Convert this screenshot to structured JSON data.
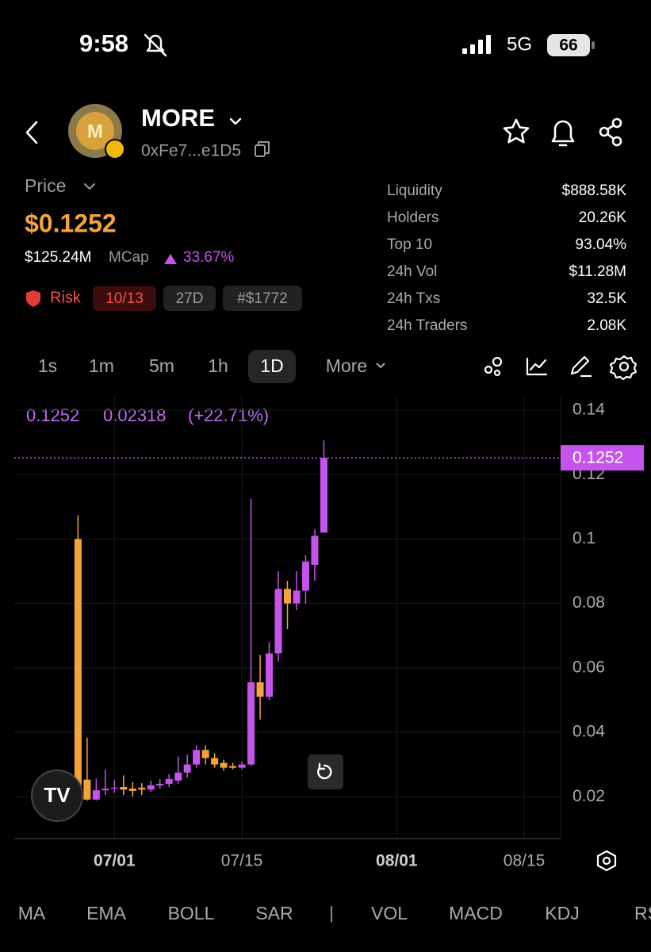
{
  "status_bar": {
    "time": "9:58",
    "network": "5G",
    "battery": "66"
  },
  "header": {
    "name": "MORE",
    "address": "0xFe7...e1D5"
  },
  "price": {
    "label": "Price",
    "value": "$0.1252",
    "mcap": "$125.24M",
    "mcap_label": "MCap",
    "change": "33.67%",
    "risk_label": "Risk",
    "risk_score": "10/13",
    "age": "27D",
    "rank": "#$1772"
  },
  "stats": [
    [
      "Liquidity",
      "$888.58K"
    ],
    [
      "Holders",
      "20.26K"
    ],
    [
      "Top 10",
      "93.04%"
    ],
    [
      "24h Vol",
      "$11.28M"
    ],
    [
      "24h Txs",
      "32.5K"
    ],
    [
      "24h Traders",
      "2.08K"
    ]
  ],
  "timeframes": [
    "1s",
    "1m",
    "5m",
    "1h",
    "1D",
    "More"
  ],
  "indicators": [
    "MA",
    "EMA",
    "BOLL",
    "SAR",
    "VOL",
    "MACD",
    "KDJ",
    "RSI"
  ],
  "chart_data": {
    "type": "candlestick",
    "readout": {
      "close": "0.1252",
      "change": "0.02318",
      "change_pct": "(+22.71%)"
    },
    "x": [
      "06/27",
      "06/28",
      "06/29",
      "06/30",
      "07/01",
      "07/02",
      "07/03",
      "07/04",
      "07/05",
      "07/06",
      "07/07",
      "07/08",
      "07/09",
      "07/10",
      "07/11",
      "07/12",
      "07/13",
      "07/14",
      "07/15",
      "07/16",
      "07/17",
      "07/18",
      "07/19",
      "07/20",
      "07/21",
      "07/22",
      "07/23",
      "07/24"
    ],
    "open": [
      0.1,
      0.0253,
      0.0191,
      0.022,
      0.0225,
      0.023,
      0.0225,
      0.0228,
      0.0222,
      0.0235,
      0.024,
      0.025,
      0.0275,
      0.03,
      0.0345,
      0.032,
      0.0305,
      0.0295,
      0.029,
      0.03,
      0.0555,
      0.051,
      0.0645,
      0.0845,
      0.08,
      0.084,
      0.092,
      0.102
    ],
    "high": [
      0.1073,
      0.0383,
      0.0256,
      0.0284,
      0.0251,
      0.0266,
      0.0245,
      0.0242,
      0.025,
      0.0255,
      0.027,
      0.0325,
      0.033,
      0.036,
      0.036,
      0.0335,
      0.0315,
      0.0305,
      0.031,
      0.1125,
      0.064,
      0.068,
      0.09,
      0.087,
      0.09,
      0.095,
      0.103,
      0.1306
    ],
    "low": [
      0.0198,
      0.0188,
      0.0188,
      0.0205,
      0.0212,
      0.0205,
      0.02,
      0.0205,
      0.0215,
      0.0225,
      0.023,
      0.024,
      0.026,
      0.029,
      0.03,
      0.029,
      0.028,
      0.0285,
      0.0285,
      0.0295,
      0.044,
      0.05,
      0.062,
      0.072,
      0.078,
      0.08,
      0.087,
      0.102
    ],
    "close": [
      0.021,
      0.0191,
      0.022,
      0.0225,
      0.0228,
      0.0222,
      0.0218,
      0.0222,
      0.0235,
      0.024,
      0.0255,
      0.0275,
      0.03,
      0.0345,
      0.032,
      0.03,
      0.029,
      0.029,
      0.03,
      0.0555,
      0.051,
      0.0645,
      0.0845,
      0.08,
      0.084,
      0.093,
      0.101,
      0.1252
    ],
    "up_color": "#c653ec",
    "down_color": "#f5a33b",
    "last_value": 0.1252,
    "xlim": [
      "06/20",
      "08/19"
    ],
    "xticks": [
      "07/01",
      "07/15",
      "08/01",
      "08/15"
    ],
    "ylim": [
      0.007,
      0.1442
    ],
    "yticks": [
      0.02,
      0.04,
      0.06,
      0.08,
      0.1,
      0.12,
      0.14
    ],
    "grid": true
  }
}
